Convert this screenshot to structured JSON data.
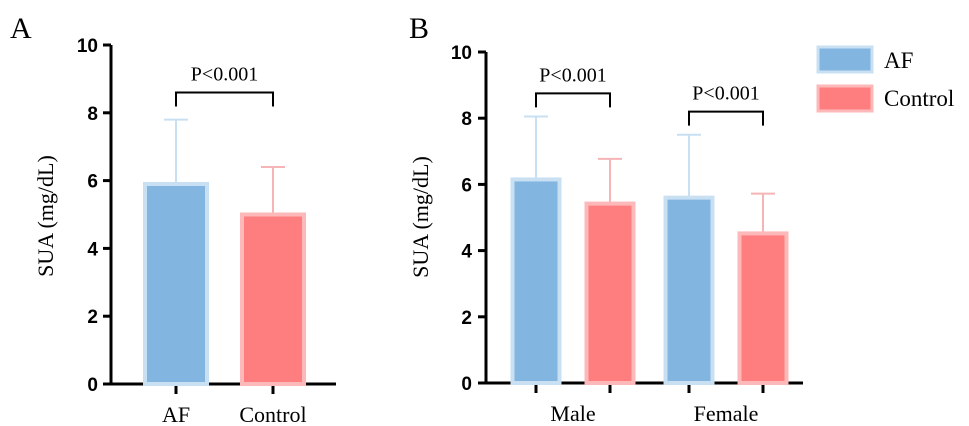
{
  "colors": {
    "AF_fill": "#82b5df",
    "AF_edge": "#c9e0f3",
    "Control_fill": "#fe7e7f",
    "Control_edge": "#fdb9ba",
    "AF_err": "#c9e0f3",
    "Control_err": "#f5b5b6"
  },
  "chart_data": [
    {
      "panel": "A",
      "type": "bar",
      "ylabel": "SUA (mg/dL)",
      "ylim": [
        0,
        10
      ],
      "yticks": [
        "0",
        "2",
        "4",
        "6",
        "8",
        "10"
      ],
      "categories": [
        "AF",
        "Control"
      ],
      "values": [
        5.9,
        5.0
      ],
      "errors": [
        1.9,
        1.4
      ],
      "colors": [
        "AF",
        "Control"
      ],
      "significance": [
        {
          "label": "P<0.001",
          "between": [
            0,
            1
          ],
          "y": 8.6
        }
      ]
    },
    {
      "panel": "B",
      "type": "bar",
      "ylabel": "SUA (mg/dL)",
      "ylim": [
        0,
        10
      ],
      "yticks": [
        "0",
        "2",
        "4",
        "6",
        "8",
        "10"
      ],
      "categories": [
        "Male",
        "Female"
      ],
      "series": [
        {
          "name": "AF",
          "values": [
            6.15,
            5.6
          ],
          "errors": [
            1.9,
            1.9
          ]
        },
        {
          "name": "Control",
          "values": [
            5.42,
            4.52
          ],
          "errors": [
            1.35,
            1.2
          ]
        }
      ],
      "significance": [
        {
          "label": "P<0.001",
          "group": 0,
          "y": 8.75
        },
        {
          "label": "P<0.001",
          "group": 1,
          "y": 8.2
        }
      ],
      "legend": {
        "position": "top-right",
        "entries": [
          "AF",
          "Control"
        ]
      }
    }
  ]
}
